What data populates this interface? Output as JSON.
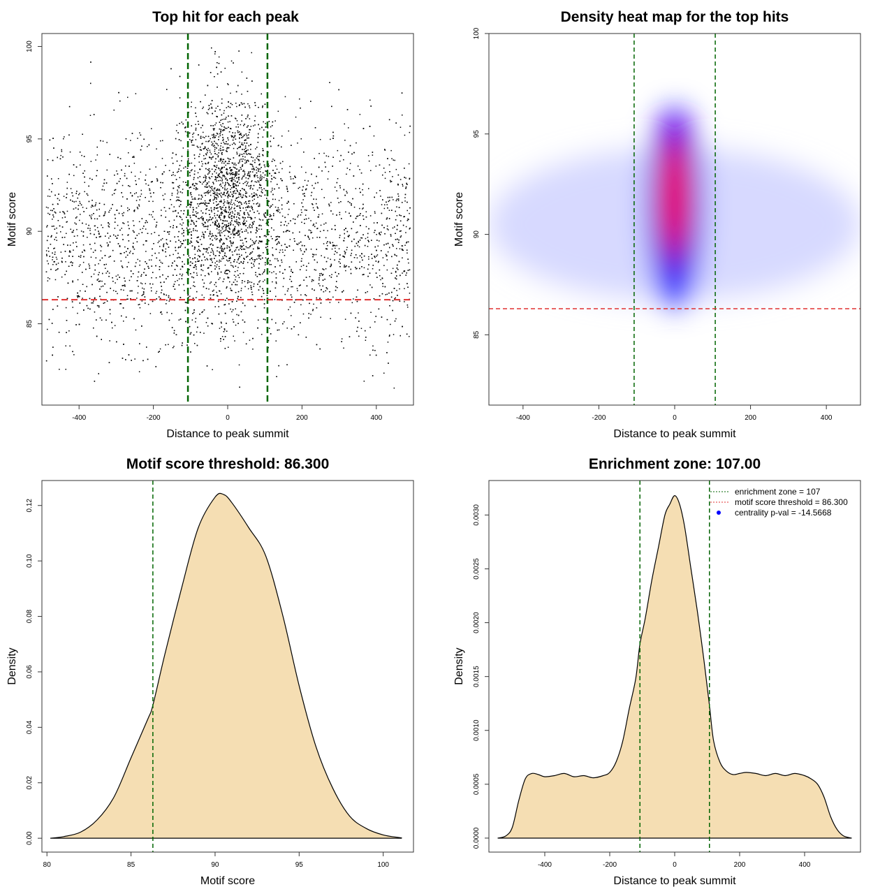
{
  "colors": {
    "fill": "#f5deb3",
    "threshold_line": "#e03030",
    "zone_line": "#006400",
    "scatter_points": "#000000",
    "heat_low": "#ffffff",
    "heat_mid": "#0000ff",
    "heat_high": "#ff0000"
  },
  "chart_data": [
    {
      "type": "scatter",
      "title": "Top hit for each peak",
      "xlabel": "Distance to peak summit",
      "ylabel": "Motif score",
      "xlim": [
        -500,
        500
      ],
      "ylim": [
        80.6,
        100.7
      ],
      "xticks": [
        "-400",
        "-200",
        "0",
        "200",
        "400"
      ],
      "yticks": [
        "85",
        "90",
        "95",
        "100"
      ],
      "hlines": [
        86.3
      ],
      "vlines": [
        -107,
        107
      ],
      "grid": false
    },
    {
      "type": "heatmap",
      "title": "Density heat map for the top hits",
      "xlabel": "Distance to peak summit",
      "ylabel": "Motif score",
      "xlim": [
        -490,
        490
      ],
      "ylim": [
        81.5,
        100
      ],
      "xticks": [
        "-400",
        "-200",
        "0",
        "200",
        "400"
      ],
      "yticks": [
        "85",
        "90",
        "95",
        "100"
      ],
      "hlines": [
        86.3
      ],
      "vlines": [
        -107,
        107
      ],
      "grid": false
    },
    {
      "type": "area",
      "title": "Motif score threshold: 86.300",
      "xlabel": "Motif score",
      "ylabel": "Density",
      "xlim": [
        79.7,
        101.8
      ],
      "ylim": [
        -0.005,
        0.129
      ],
      "xticks": [
        "80",
        "85",
        "90",
        "95",
        "100"
      ],
      "yticks": [
        "0.00",
        "0.02",
        "0.04",
        "0.06",
        "0.08",
        "0.10",
        "0.12"
      ],
      "vlines": [
        86.3
      ],
      "x": [
        80.2,
        81,
        82,
        83,
        84,
        85,
        86,
        86.3,
        87,
        88,
        89,
        90,
        90.5,
        91,
        92,
        93,
        94,
        95,
        96,
        97,
        98,
        99,
        100,
        101,
        101.1
      ],
      "y": [
        0.0,
        0.0006,
        0.0022,
        0.0067,
        0.015,
        0.029,
        0.043,
        0.048,
        0.066,
        0.09,
        0.112,
        0.123,
        0.124,
        0.121,
        0.112,
        0.102,
        0.081,
        0.055,
        0.033,
        0.018,
        0.008,
        0.0035,
        0.0012,
        0.0002,
        0.0
      ]
    },
    {
      "type": "area",
      "title": "Enrichment zone: 107.00",
      "xlabel": "Distance to peak summit",
      "ylabel": "Density",
      "xlim": [
        -572,
        572
      ],
      "ylim": [
        -0.00013,
        0.00332
      ],
      "xticks": [
        "-400",
        "-200",
        "0",
        "200",
        "400"
      ],
      "yticks": [
        "0.0000",
        "0.0005",
        "0.0010",
        "0.0015",
        "0.0020",
        "0.0025",
        "0.0030"
      ],
      "vlines": [
        -107,
        107
      ],
      "x": [
        -545,
        -520,
        -500,
        -480,
        -460,
        -440,
        -420,
        -400,
        -370,
        -340,
        -310,
        -280,
        -250,
        -220,
        -200,
        -180,
        -160,
        -140,
        -120,
        -107,
        -90,
        -70,
        -50,
        -30,
        -15,
        0,
        15,
        30,
        50,
        70,
        90,
        107,
        120,
        140,
        160,
        180,
        200,
        220,
        250,
        280,
        310,
        340,
        370,
        400,
        420,
        440,
        460,
        480,
        500,
        520,
        545
      ],
      "y": [
        0.0,
        2e-05,
        0.0001,
        0.00035,
        0.00055,
        0.0006,
        0.00059,
        0.00057,
        0.00058,
        0.0006,
        0.00057,
        0.00058,
        0.00056,
        0.00058,
        0.00061,
        0.00071,
        0.0009,
        0.0012,
        0.00148,
        0.0018,
        0.00205,
        0.0024,
        0.0027,
        0.003,
        0.0031,
        0.00318,
        0.0031,
        0.0029,
        0.0025,
        0.0021,
        0.00165,
        0.00123,
        0.0009,
        0.0007,
        0.00062,
        0.00059,
        0.0006,
        0.00061,
        0.0006,
        0.00058,
        0.0006,
        0.00058,
        0.0006,
        0.00058,
        0.00055,
        0.0005,
        0.00038,
        0.0002,
        8e-05,
        2e-05,
        0.0
      ],
      "legend": {
        "position": "top-right",
        "entries": [
          "enrichment zone = 107",
          "motif score threshold = 86.300",
          "centrality p-val = -14.5668"
        ]
      }
    }
  ]
}
